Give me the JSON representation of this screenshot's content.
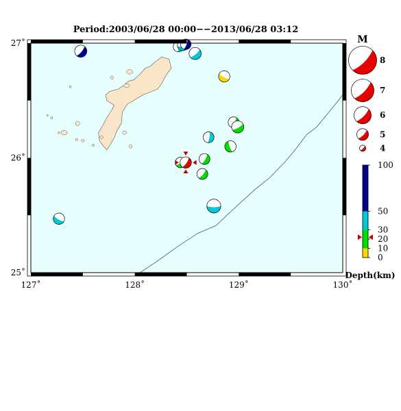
{
  "title": "Period:2003/06/28 00:00−−2013/06/28 03:12",
  "colors": {
    "sea": "#e8ffff",
    "land": "#fbe5c8",
    "compression": "#e60000",
    "frame": "#000000"
  },
  "axes": {
    "lon_range": [
      127,
      130
    ],
    "lat_range": [
      25,
      27
    ],
    "lon_ticks": [
      {
        "value": 127,
        "label": "127˚"
      },
      {
        "value": 128,
        "label": "128˚"
      },
      {
        "value": 129,
        "label": "129˚"
      },
      {
        "value": 130,
        "label": "130˚"
      }
    ],
    "lat_ticks": [
      {
        "value": 25,
        "label": "25˚"
      },
      {
        "value": 26,
        "label": "26˚"
      },
      {
        "value": 27,
        "label": "27˚"
      }
    ]
  },
  "magnitude_legend": {
    "title": "M",
    "items": [
      {
        "label": "8",
        "m": 8
      },
      {
        "label": "7",
        "m": 7
      },
      {
        "label": "6",
        "m": 6
      },
      {
        "label": "5",
        "m": 5
      },
      {
        "label": "4",
        "m": 4
      }
    ]
  },
  "depth_scale": {
    "title": "Depth(km)",
    "bands": [
      {
        "from": 0,
        "to": 10,
        "color": "#ffd700"
      },
      {
        "from": 10,
        "to": 30,
        "color": "#00dd00"
      },
      {
        "from": 30,
        "to": 50,
        "color": "#00c8d8"
      },
      {
        "from": 50,
        "to": 100,
        "color": "#00008b"
      }
    ],
    "tick_labels": [
      {
        "value": 100,
        "label": "100"
      },
      {
        "value": 50,
        "label": "50"
      },
      {
        "value": 30,
        "label": "30"
      },
      {
        "value": 20,
        "label": "20"
      },
      {
        "value": 10,
        "label": "10"
      },
      {
        "value": 0,
        "label": "0"
      }
    ],
    "marker_depth": 22
  },
  "events": [
    {
      "lon": 127.48,
      "lat": 26.93,
      "m": 5.4,
      "depth": 80,
      "rot": 40
    },
    {
      "lon": 128.42,
      "lat": 26.97,
      "m": 5.0,
      "depth": 45,
      "rot": 10
    },
    {
      "lon": 128.46,
      "lat": 26.98,
      "m": 5.0,
      "depth": 45,
      "rot": 80
    },
    {
      "lon": 128.49,
      "lat": 26.99,
      "m": 5.0,
      "depth": 90,
      "rot": 20
    },
    {
      "lon": 128.58,
      "lat": 26.91,
      "m": 5.4,
      "depth": 40,
      "rot": 50
    },
    {
      "lon": 128.86,
      "lat": 26.71,
      "m": 5.2,
      "depth": 5,
      "rot": 120
    },
    {
      "lon": 128.95,
      "lat": 26.31,
      "m": 5.1,
      "depth": 15,
      "rot": 30
    },
    {
      "lon": 128.99,
      "lat": 26.27,
      "m": 5.4,
      "depth": 15,
      "rot": 60
    },
    {
      "lon": 128.71,
      "lat": 26.18,
      "m": 5.1,
      "depth": 45,
      "rot": 10
    },
    {
      "lon": 128.92,
      "lat": 26.1,
      "m": 5.2,
      "depth": 20,
      "rot": 160
    },
    {
      "lon": 128.67,
      "lat": 25.99,
      "m": 5.1,
      "depth": 20,
      "rot": 30
    },
    {
      "lon": 128.44,
      "lat": 25.96,
      "m": 5.0,
      "depth": 20,
      "rot": 60
    },
    {
      "lon": 128.49,
      "lat": 25.96,
      "m": 5.2,
      "depth": 22,
      "rot": 35,
      "highlight": true
    },
    {
      "lon": 128.65,
      "lat": 25.86,
      "m": 5.1,
      "depth": 20,
      "rot": 40
    },
    {
      "lon": 128.76,
      "lat": 25.58,
      "m": 5.8,
      "depth": 40,
      "rot": 90
    },
    {
      "lon": 127.27,
      "lat": 25.47,
      "m": 5.2,
      "depth": 45,
      "rot": 120
    }
  ],
  "trench": [
    [
      128.05,
      25.0
    ],
    [
      128.2,
      25.09
    ],
    [
      128.4,
      25.22
    ],
    [
      128.6,
      25.34
    ],
    [
      128.78,
      25.41
    ],
    [
      128.98,
      25.58
    ],
    [
      129.15,
      25.72
    ],
    [
      129.3,
      25.83
    ],
    [
      129.45,
      25.97
    ],
    [
      129.55,
      26.08
    ],
    [
      129.65,
      26.2
    ],
    [
      129.75,
      26.27
    ],
    [
      129.85,
      26.38
    ],
    [
      129.95,
      26.49
    ],
    [
      130.0,
      26.55
    ]
  ],
  "land": {
    "okinawa": [
      [
        128.26,
        26.88
      ],
      [
        128.33,
        26.86
      ],
      [
        128.35,
        26.78
      ],
      [
        128.3,
        26.72
      ],
      [
        128.26,
        26.65
      ],
      [
        128.22,
        26.6
      ],
      [
        128.14,
        26.57
      ],
      [
        128.08,
        26.55
      ],
      [
        127.99,
        26.5
      ],
      [
        127.93,
        26.47
      ],
      [
        127.88,
        26.4
      ],
      [
        127.87,
        26.3
      ],
      [
        127.83,
        26.24
      ],
      [
        127.8,
        26.17
      ],
      [
        127.76,
        26.11
      ],
      [
        127.73,
        26.07
      ],
      [
        127.7,
        26.1
      ],
      [
        127.66,
        26.15
      ],
      [
        127.65,
        26.22
      ],
      [
        127.69,
        26.28
      ],
      [
        127.73,
        26.35
      ],
      [
        127.78,
        26.42
      ],
      [
        127.8,
        26.46
      ],
      [
        127.73,
        26.5
      ],
      [
        127.72,
        26.55
      ],
      [
        127.76,
        26.58
      ],
      [
        127.84,
        26.6
      ],
      [
        127.89,
        26.63
      ],
      [
        127.94,
        26.67
      ],
      [
        127.99,
        26.68
      ],
      [
        128.05,
        26.73
      ],
      [
        128.1,
        26.78
      ],
      [
        128.15,
        26.8
      ],
      [
        128.2,
        26.84
      ]
    ],
    "islets": [
      [
        127.95,
        26.75,
        0.03,
        0.02
      ],
      [
        127.92,
        26.63,
        0.03,
        0.015
      ],
      [
        127.78,
        26.7,
        0.015,
        0.015
      ],
      [
        127.38,
        26.62,
        0.01,
        0.01
      ],
      [
        127.45,
        26.3,
        0.02,
        0.02
      ],
      [
        127.32,
        26.22,
        0.03,
        0.02
      ],
      [
        127.27,
        26.22,
        0.01,
        0.01
      ],
      [
        127.5,
        26.15,
        0.015,
        0.012
      ],
      [
        127.44,
        26.16,
        0.012,
        0.01
      ],
      [
        127.6,
        26.11,
        0.012,
        0.01
      ],
      [
        127.68,
        26.18,
        0.015,
        0.012
      ],
      [
        127.9,
        26.22,
        0.02,
        0.015
      ],
      [
        127.96,
        26.1,
        0.015,
        0.015
      ],
      [
        127.2,
        26.35,
        0.01,
        0.01
      ],
      [
        127.16,
        26.37,
        0.008,
        0.008
      ]
    ]
  }
}
